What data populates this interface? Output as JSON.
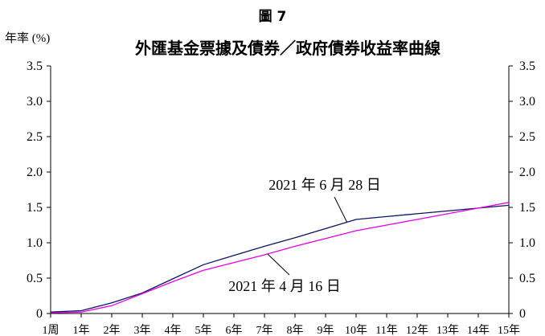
{
  "figure_label": "圖 7",
  "chart_data": {
    "type": "line",
    "title": "外匯基金票據及債券／政府債券收益率曲線",
    "ylabel": "年率 (%)",
    "xlabel": "",
    "categories": [
      "1周",
      "1年",
      "2年",
      "3年",
      "4年",
      "5年",
      "6年",
      "7年",
      "8年",
      "9年",
      "10年",
      "11年",
      "12年",
      "13年",
      "14年",
      "15年"
    ],
    "ylim": [
      0,
      3.5
    ],
    "yticks": [
      "0",
      "0.5",
      "1.0",
      "1.5",
      "2.0",
      "2.5",
      "3.0",
      "3.5"
    ],
    "ytick_values": [
      0,
      0.5,
      1.0,
      1.5,
      2.0,
      2.5,
      3.0,
      3.5
    ],
    "dual_y_axis": true,
    "grid": false,
    "series": [
      {
        "name": "2021 年 6 月 28 日",
        "color": "#0b1560",
        "values": [
          0.02,
          0.04,
          0.15,
          0.29,
          0.49,
          0.69,
          0.82,
          0.95,
          1.07,
          1.2,
          1.33,
          1.37,
          1.41,
          1.45,
          1.49,
          1.53
        ]
      },
      {
        "name": "2021 年 4 月 16 日",
        "color": "#e600e6",
        "values": [
          0.01,
          0.02,
          0.11,
          0.28,
          0.45,
          0.61,
          0.72,
          0.83,
          0.95,
          1.06,
          1.17,
          1.25,
          1.33,
          1.41,
          1.49,
          1.57
        ]
      }
    ],
    "annotations": [
      {
        "text": "2021 年 6 月 28 日",
        "series": 0
      },
      {
        "text": "2021 年 4 月 16 日",
        "series": 1
      }
    ]
  }
}
